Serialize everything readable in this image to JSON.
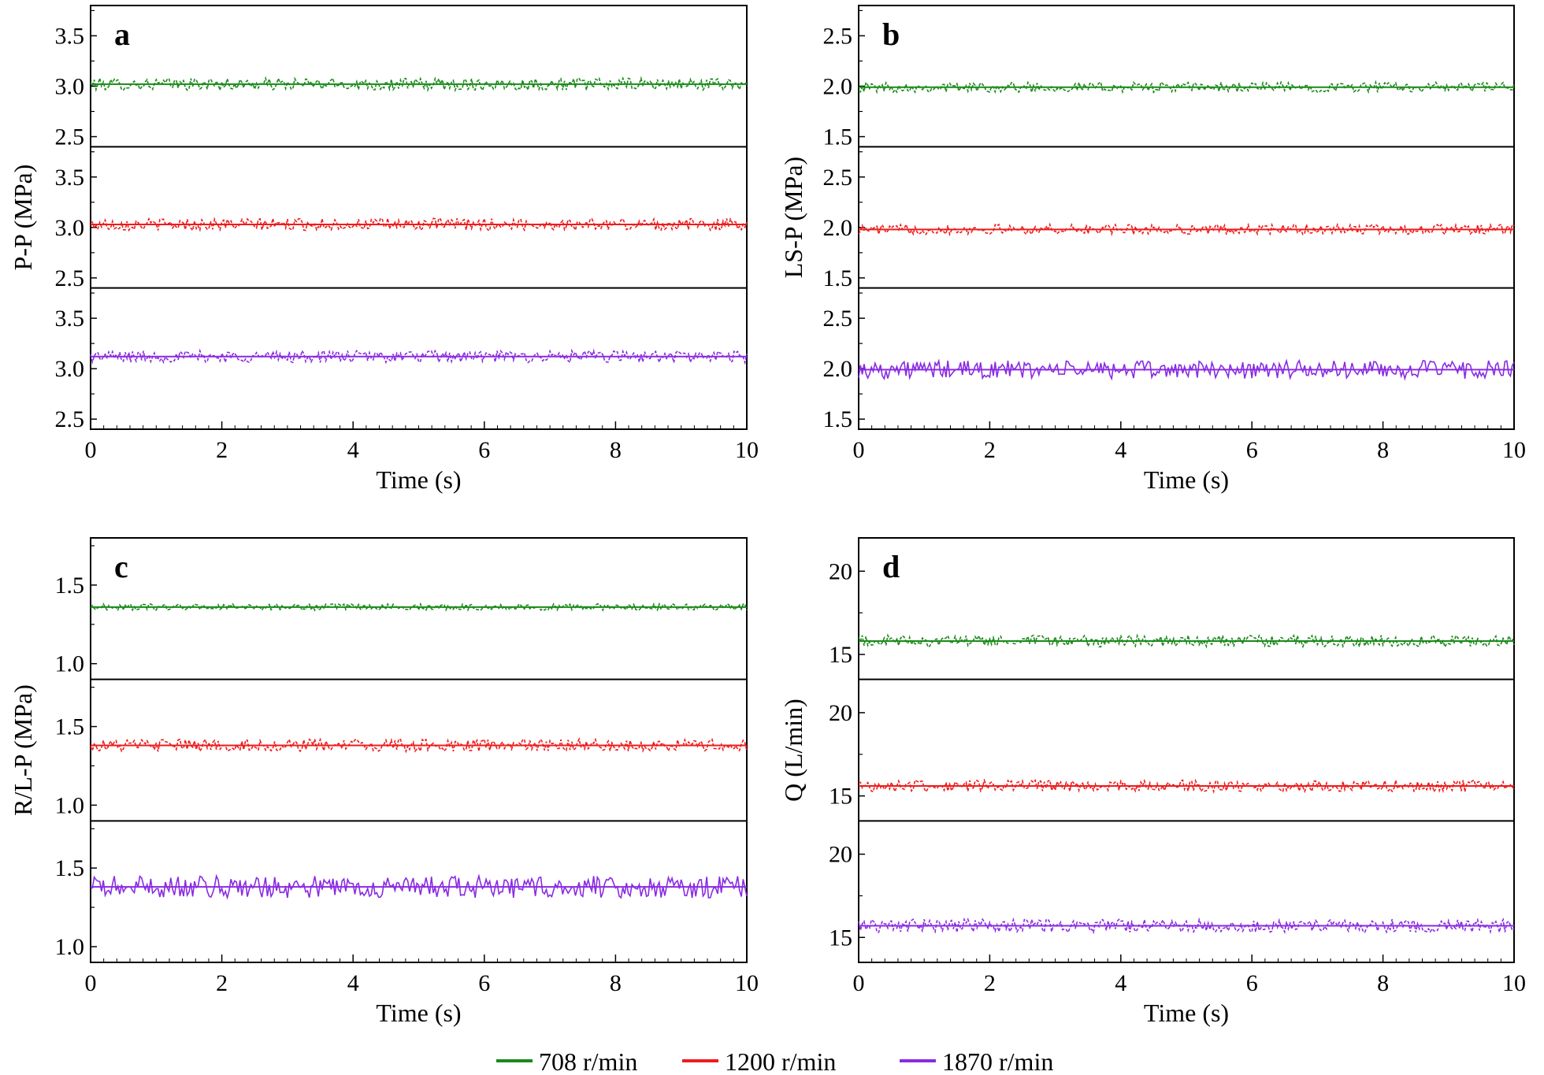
{
  "colors": {
    "708": "#1a8a1a",
    "1200": "#ee1c1c",
    "1870": "#8a2be2",
    "axis": "#000000"
  },
  "legend": {
    "items": [
      {
        "key": "708",
        "label": "708 r/min"
      },
      {
        "key": "1200",
        "label": "1200 r/min"
      },
      {
        "key": "1870",
        "label": "1870 r/min"
      }
    ]
  },
  "chart_data": [
    {
      "panel": "a",
      "type": "line",
      "xlabel": "Time (s)",
      "ylabel": "P-P (MPa)",
      "xlim": [
        0,
        10
      ],
      "xticks": [
        "0",
        "2",
        "4",
        "6",
        "8",
        "10"
      ],
      "subplots": [
        {
          "series": "708 r/min",
          "color_key": "708",
          "ylim": [
            2.4,
            3.8
          ],
          "yticks": [
            "2.5",
            "3.0",
            "3.5"
          ],
          "mean": 3.02,
          "amplitude": 0.06,
          "style": "dashed"
        },
        {
          "series": "1200 r/min",
          "color_key": "1200",
          "ylim": [
            2.4,
            3.8
          ],
          "yticks": [
            "2.5",
            "3.0",
            "3.5"
          ],
          "mean": 3.03,
          "amplitude": 0.06,
          "style": "dashed"
        },
        {
          "series": "1870 r/min",
          "color_key": "1870",
          "ylim": [
            2.4,
            3.8
          ],
          "yticks": [
            "2.5",
            "3.0",
            "3.5"
          ],
          "mean": 3.12,
          "amplitude": 0.06,
          "style": "dashed"
        }
      ]
    },
    {
      "panel": "b",
      "type": "line",
      "xlabel": "Time (s)",
      "ylabel": "LS-P (MPa)",
      "xlim": [
        0,
        10
      ],
      "xticks": [
        "0",
        "2",
        "4",
        "6",
        "8",
        "10"
      ],
      "subplots": [
        {
          "series": "708 r/min",
          "color_key": "708",
          "ylim": [
            1.4,
            2.8
          ],
          "yticks": [
            "1.5",
            "2.0",
            "2.5"
          ],
          "mean": 1.99,
          "amplitude": 0.05,
          "style": "dashed"
        },
        {
          "series": "1200 r/min",
          "color_key": "1200",
          "ylim": [
            1.4,
            2.8
          ],
          "yticks": [
            "1.5",
            "2.0",
            "2.5"
          ],
          "mean": 1.98,
          "amplitude": 0.05,
          "style": "dashed"
        },
        {
          "series": "1870 r/min",
          "color_key": "1870",
          "ylim": [
            1.4,
            2.8
          ],
          "yticks": [
            "1.5",
            "2.0",
            "2.5"
          ],
          "mean": 1.99,
          "amplitude": 0.09,
          "style": "solid"
        }
      ]
    },
    {
      "panel": "c",
      "type": "line",
      "xlabel": "Time (s)",
      "ylabel": "R/L-P (MPa)",
      "xlim": [
        0,
        10
      ],
      "xticks": [
        "0",
        "2",
        "4",
        "6",
        "8",
        "10"
      ],
      "subplots": [
        {
          "series": "708 r/min",
          "color_key": "708",
          "ylim": [
            0.9,
            1.8
          ],
          "yticks": [
            "1.0",
            "1.5"
          ],
          "mean": 1.36,
          "amplitude": 0.02,
          "style": "dashed"
        },
        {
          "series": "1200 r/min",
          "color_key": "1200",
          "ylim": [
            0.9,
            1.8
          ],
          "yticks": [
            "1.0",
            "1.5"
          ],
          "mean": 1.38,
          "amplitude": 0.04,
          "style": "dashed"
        },
        {
          "series": "1870 r/min",
          "color_key": "1870",
          "ylim": [
            0.9,
            1.8
          ],
          "yticks": [
            "1.0",
            "1.5"
          ],
          "mean": 1.38,
          "amplitude": 0.07,
          "style": "solid"
        }
      ]
    },
    {
      "panel": "d",
      "type": "line",
      "xlabel": "Time (s)",
      "ylabel": "Q (L/min)",
      "xlim": [
        0,
        10
      ],
      "xticks": [
        "0",
        "2",
        "4",
        "6",
        "8",
        "10"
      ],
      "subplots": [
        {
          "series": "708 r/min",
          "color_key": "708",
          "ylim": [
            13.5,
            22
          ],
          "yticks": [
            "15",
            "20"
          ],
          "mean": 15.8,
          "amplitude": 0.35,
          "style": "dashed"
        },
        {
          "series": "1200 r/min",
          "color_key": "1200",
          "ylim": [
            13.5,
            22
          ],
          "yticks": [
            "15",
            "20"
          ],
          "mean": 15.6,
          "amplitude": 0.35,
          "style": "dashed"
        },
        {
          "series": "1870 r/min",
          "color_key": "1870",
          "ylim": [
            13.5,
            22
          ],
          "yticks": [
            "15",
            "20"
          ],
          "mean": 15.7,
          "amplitude": 0.4,
          "style": "dashed"
        }
      ]
    }
  ]
}
